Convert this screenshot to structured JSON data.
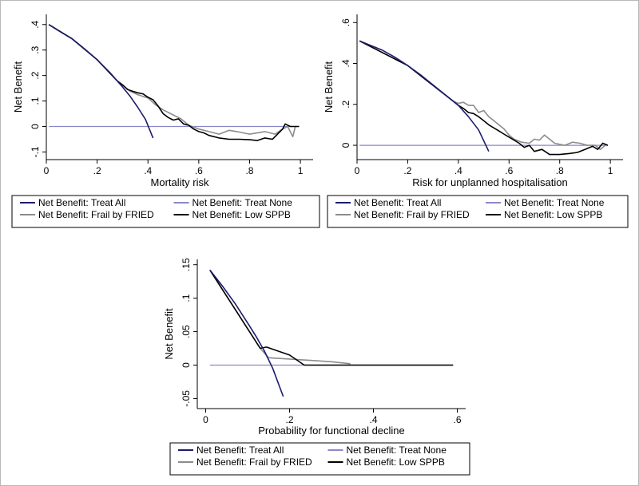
{
  "chart_data": [
    {
      "type": "line",
      "xlabel": "Mortality risk",
      "ylabel": "Net Benefit",
      "xlim": [
        0,
        1
      ],
      "ylim": [
        -0.1,
        0.4
      ],
      "x_ticks": [
        0,
        0.2,
        0.4,
        0.6,
        0.8,
        1
      ],
      "x_tick_labels": [
        "0",
        ".2",
        ".4",
        ".6",
        ".8",
        "1"
      ],
      "y_ticks": [
        -0.1,
        0,
        0.1,
        0.2,
        0.3,
        0.4
      ],
      "y_tick_labels": [
        "-.1",
        "0",
        ".1",
        ".2",
        ".3",
        ".4"
      ],
      "legend_position": "bottom",
      "series": [
        {
          "name": "Net Benefit: Treat All",
          "color": "#1b1b6e",
          "points": [
            [
              0.01,
              0.4
            ],
            [
              0.05,
              0.375
            ],
            [
              0.1,
              0.345
            ],
            [
              0.15,
              0.305
            ],
            [
              0.2,
              0.262
            ],
            [
              0.25,
              0.212
            ],
            [
              0.3,
              0.155
            ],
            [
              0.33,
              0.118
            ],
            [
              0.36,
              0.075
            ],
            [
              0.39,
              0.028
            ],
            [
              0.42,
              -0.045
            ]
          ]
        },
        {
          "name": "Net Benefit: Treat None",
          "color": "#8a87c8",
          "points": [
            [
              0.01,
              0
            ],
            [
              0.99,
              0
            ]
          ]
        },
        {
          "name": "Net Benefit: Frail by FRIED",
          "color": "#8c8c8c",
          "points": [
            [
              0.01,
              0.4
            ],
            [
              0.1,
              0.345
            ],
            [
              0.2,
              0.262
            ],
            [
              0.28,
              0.178
            ],
            [
              0.3,
              0.163
            ],
            [
              0.33,
              0.138
            ],
            [
              0.36,
              0.125
            ],
            [
              0.38,
              0.118
            ],
            [
              0.4,
              0.112
            ],
            [
              0.43,
              0.085
            ],
            [
              0.46,
              0.065
            ],
            [
              0.5,
              0.045
            ],
            [
              0.53,
              0.03
            ],
            [
              0.56,
              0.005
            ],
            [
              0.6,
              -0.01
            ],
            [
              0.64,
              -0.02
            ],
            [
              0.68,
              -0.03
            ],
            [
              0.72,
              -0.015
            ],
            [
              0.75,
              -0.02
            ],
            [
              0.8,
              -0.03
            ],
            [
              0.86,
              -0.02
            ],
            [
              0.9,
              -0.03
            ],
            [
              0.93,
              -0.01
            ],
            [
              0.95,
              0.0
            ],
            [
              0.97,
              -0.04
            ],
            [
              0.98,
              0.0
            ]
          ]
        },
        {
          "name": "Net Benefit: Low SPPB",
          "color": "#000000",
          "points": [
            [
              0.01,
              0.4
            ],
            [
              0.1,
              0.345
            ],
            [
              0.2,
              0.262
            ],
            [
              0.28,
              0.178
            ],
            [
              0.3,
              0.163
            ],
            [
              0.32,
              0.145
            ],
            [
              0.34,
              0.138
            ],
            [
              0.36,
              0.132
            ],
            [
              0.38,
              0.128
            ],
            [
              0.4,
              0.115
            ],
            [
              0.42,
              0.105
            ],
            [
              0.44,
              0.08
            ],
            [
              0.46,
              0.05
            ],
            [
              0.48,
              0.035
            ],
            [
              0.5,
              0.025
            ],
            [
              0.52,
              0.03
            ],
            [
              0.54,
              0.01
            ],
            [
              0.56,
              0.005
            ],
            [
              0.58,
              -0.01
            ],
            [
              0.6,
              -0.02
            ],
            [
              0.62,
              -0.025
            ],
            [
              0.64,
              -0.035
            ],
            [
              0.68,
              -0.045
            ],
            [
              0.72,
              -0.05
            ],
            [
              0.76,
              -0.05
            ],
            [
              0.8,
              -0.052
            ],
            [
              0.83,
              -0.055
            ],
            [
              0.86,
              -0.045
            ],
            [
              0.89,
              -0.05
            ],
            [
              0.91,
              -0.03
            ],
            [
              0.93,
              -0.01
            ],
            [
              0.94,
              0.01
            ],
            [
              0.96,
              0.0
            ],
            [
              0.98,
              0.0
            ],
            [
              0.995,
              0.0
            ]
          ]
        }
      ]
    },
    {
      "type": "line",
      "xlabel": "Risk for unplanned hospitalisation",
      "ylabel": "Net Benefit",
      "xlim": [
        0,
        1
      ],
      "ylim": [
        0,
        0.6
      ],
      "x_ticks": [
        0,
        0.2,
        0.4,
        0.6,
        0.8,
        1
      ],
      "x_tick_labels": [
        "0",
        ".2",
        ".4",
        ".6",
        ".8",
        "1"
      ],
      "y_ticks": [
        0,
        0.2,
        0.4,
        0.6
      ],
      "y_tick_labels": [
        "0",
        ".2",
        ".4",
        ".6"
      ],
      "legend_position": "bottom",
      "series": [
        {
          "name": "Net Benefit: Treat All",
          "color": "#1b1b6e",
          "points": [
            [
              0.01,
              0.51
            ],
            [
              0.05,
              0.49
            ],
            [
              0.1,
              0.465
            ],
            [
              0.15,
              0.43
            ],
            [
              0.2,
              0.39
            ],
            [
              0.25,
              0.345
            ],
            [
              0.3,
              0.295
            ],
            [
              0.35,
              0.245
            ],
            [
              0.4,
              0.195
            ],
            [
              0.44,
              0.14
            ],
            [
              0.48,
              0.075
            ],
            [
              0.52,
              -0.03
            ]
          ]
        },
        {
          "name": "Net Benefit: Treat None",
          "color": "#8a87c8",
          "points": [
            [
              0.01,
              0
            ],
            [
              0.99,
              0
            ]
          ]
        },
        {
          "name": "Net Benefit: Frail by FRIED",
          "color": "#8c8c8c",
          "points": [
            [
              0.01,
              0.51
            ],
            [
              0.2,
              0.39
            ],
            [
              0.38,
              0.215
            ],
            [
              0.4,
              0.205
            ],
            [
              0.42,
              0.21
            ],
            [
              0.44,
              0.195
            ],
            [
              0.46,
              0.195
            ],
            [
              0.48,
              0.16
            ],
            [
              0.5,
              0.17
            ],
            [
              0.52,
              0.14
            ],
            [
              0.54,
              0.12
            ],
            [
              0.56,
              0.1
            ],
            [
              0.58,
              0.08
            ],
            [
              0.6,
              0.05
            ],
            [
              0.62,
              0.03
            ],
            [
              0.65,
              0.015
            ],
            [
              0.68,
              0.01
            ],
            [
              0.7,
              0.03
            ],
            [
              0.72,
              0.025
            ],
            [
              0.74,
              0.05
            ],
            [
              0.76,
              0.03
            ],
            [
              0.78,
              0.01
            ],
            [
              0.82,
              0.0
            ],
            [
              0.85,
              0.015
            ],
            [
              0.88,
              0.01
            ],
            [
              0.91,
              0.0
            ],
            [
              0.94,
              0.0
            ],
            [
              0.96,
              -0.02
            ],
            [
              0.98,
              0.0
            ]
          ]
        },
        {
          "name": "Net Benefit: Low SPPB",
          "color": "#000000",
          "points": [
            [
              0.01,
              0.51
            ],
            [
              0.2,
              0.39
            ],
            [
              0.38,
              0.215
            ],
            [
              0.4,
              0.195
            ],
            [
              0.42,
              0.18
            ],
            [
              0.44,
              0.16
            ],
            [
              0.46,
              0.155
            ],
            [
              0.48,
              0.14
            ],
            [
              0.5,
              0.12
            ],
            [
              0.52,
              0.1
            ],
            [
              0.54,
              0.085
            ],
            [
              0.56,
              0.07
            ],
            [
              0.58,
              0.055
            ],
            [
              0.6,
              0.04
            ],
            [
              0.62,
              0.025
            ],
            [
              0.64,
              0.01
            ],
            [
              0.66,
              -0.01
            ],
            [
              0.68,
              0.0
            ],
            [
              0.7,
              -0.03
            ],
            [
              0.73,
              -0.02
            ],
            [
              0.76,
              -0.045
            ],
            [
              0.8,
              -0.045
            ],
            [
              0.84,
              -0.04
            ],
            [
              0.87,
              -0.035
            ],
            [
              0.9,
              -0.02
            ],
            [
              0.93,
              -0.005
            ],
            [
              0.95,
              -0.02
            ],
            [
              0.97,
              0.01
            ],
            [
              0.99,
              0.0
            ]
          ]
        }
      ]
    },
    {
      "type": "line",
      "xlabel": "Probability for functional decline",
      "ylabel": "Net Benefit",
      "xlim": [
        0,
        0.6
      ],
      "ylim": [
        -0.05,
        0.15
      ],
      "x_ticks": [
        0,
        0.2,
        0.4,
        0.6
      ],
      "x_tick_labels": [
        "0",
        ".2",
        ".4",
        ".6"
      ],
      "y_ticks": [
        -0.05,
        0,
        0.05,
        0.1,
        0.15
      ],
      "y_tick_labels": [
        "-.05",
        "0",
        ".05",
        ".1",
        ".15"
      ],
      "legend_position": "bottom",
      "series": [
        {
          "name": "Net Benefit: Treat All",
          "color": "#1b1b6e",
          "points": [
            [
              0.01,
              0.142
            ],
            [
              0.04,
              0.118
            ],
            [
              0.07,
              0.092
            ],
            [
              0.1,
              0.063
            ],
            [
              0.12,
              0.043
            ],
            [
              0.14,
              0.021
            ],
            [
              0.16,
              -0.005
            ],
            [
              0.185,
              -0.047
            ]
          ]
        },
        {
          "name": "Net Benefit: Treat None",
          "color": "#8a87c8",
          "points": [
            [
              0.01,
              0
            ],
            [
              0.59,
              0
            ]
          ]
        },
        {
          "name": "Net Benefit: Frail by FRIED",
          "color": "#8c8c8c",
          "points": [
            [
              0.01,
              0.142
            ],
            [
              0.13,
              0.025
            ],
            [
              0.15,
              0.011
            ],
            [
              0.2,
              0.009
            ],
            [
              0.3,
              0.005
            ],
            [
              0.345,
              0.002
            ]
          ]
        },
        {
          "name": "Net Benefit: Low SPPB",
          "color": "#000000",
          "points": [
            [
              0.01,
              0.142
            ],
            [
              0.13,
              0.025
            ],
            [
              0.145,
              0.027
            ],
            [
              0.2,
              0.015
            ],
            [
              0.235,
              0.0
            ],
            [
              0.59,
              0.0
            ]
          ]
        }
      ]
    }
  ]
}
